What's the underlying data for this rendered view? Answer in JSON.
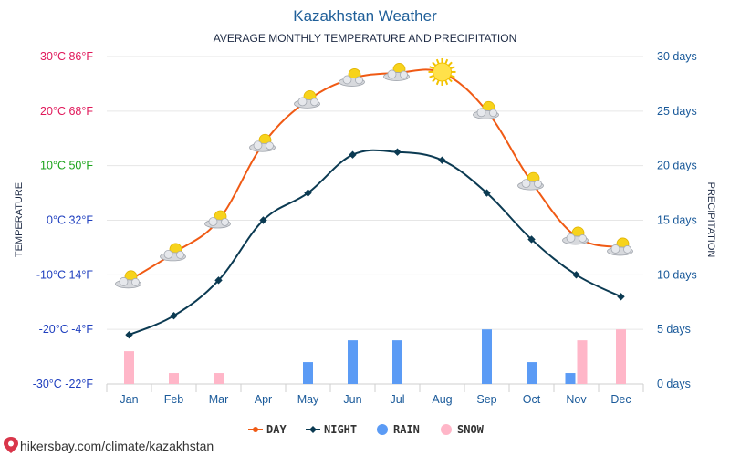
{
  "chart_data": {
    "type": "line",
    "title": "Kazakhstan Weather",
    "subtitle": "AVERAGE MONTHLY TEMPERATURE AND PRECIPITATION",
    "ylabel_left": "TEMPERATURE",
    "ylabel_right": "PRECIPITATION",
    "categories": [
      "Jan",
      "Feb",
      "Mar",
      "Apr",
      "May",
      "Jun",
      "Jul",
      "Aug",
      "Sep",
      "Oct",
      "Nov",
      "Dec"
    ],
    "temperature_axis": {
      "range_c": [
        -30,
        30
      ],
      "ticks": [
        {
          "c": 30,
          "label": "30°C 86°F",
          "color": "#e0185a"
        },
        {
          "c": 20,
          "label": "20°C 68°F",
          "color": "#e0185a"
        },
        {
          "c": 10,
          "label": "10°C 50°F",
          "color": "#1aa31a"
        },
        {
          "c": 0,
          "label": "0°C 32°F",
          "color": "#1f3fbf"
        },
        {
          "c": -10,
          "label": "-10°C 14°F",
          "color": "#1f3fbf"
        },
        {
          "c": -20,
          "label": "-20°C -4°F",
          "color": "#1f3fbf"
        },
        {
          "c": -30,
          "label": "-30°C -22°F",
          "color": "#1f3fbf"
        }
      ]
    },
    "precipitation_axis": {
      "range_days": [
        0,
        30
      ],
      "ticks": [
        {
          "v": 30,
          "label": "30 days"
        },
        {
          "v": 25,
          "label": "25 days"
        },
        {
          "v": 20,
          "label": "20 days"
        },
        {
          "v": 15,
          "label": "15 days"
        },
        {
          "v": 10,
          "label": "10 days"
        },
        {
          "v": 5,
          "label": "5 days"
        },
        {
          "v": 0,
          "label": "0 days"
        }
      ]
    },
    "series": [
      {
        "name": "DAY",
        "type": "line",
        "color": "#f05a14",
        "values": [
          -11,
          -6,
          0,
          14,
          22,
          26,
          27,
          27,
          20,
          7,
          -3,
          -5
        ],
        "markers": [
          "partly-cloudy",
          "partly-cloudy",
          "partly-cloudy",
          "partly-cloudy",
          "partly-cloudy",
          "partly-cloudy",
          "partly-cloudy",
          "sunny",
          "partly-cloudy",
          "partly-cloudy",
          "partly-cloudy",
          "partly-cloudy"
        ]
      },
      {
        "name": "NIGHT",
        "type": "line",
        "color": "#0b3a52",
        "values": [
          -21,
          -17.5,
          -11,
          0,
          5,
          12,
          12.5,
          11,
          5,
          -3.5,
          -10,
          -14
        ]
      },
      {
        "name": "RAIN",
        "type": "bar",
        "color": "#5b9bf5",
        "values": [
          0,
          0,
          0,
          0,
          2,
          4,
          4,
          0,
          5,
          2,
          1,
          0
        ]
      },
      {
        "name": "SNOW",
        "type": "bar",
        "color": "#ffb6c8",
        "values": [
          3,
          1,
          1,
          0,
          0,
          0,
          0,
          0,
          0,
          0,
          4,
          5
        ]
      }
    ]
  },
  "legend": [
    {
      "name": "DAY",
      "kind": "line",
      "color": "#f05a14"
    },
    {
      "name": "NIGHT",
      "kind": "line",
      "color": "#0b3a52"
    },
    {
      "name": "RAIN",
      "kind": "dot",
      "color": "#5b9bf5"
    },
    {
      "name": "SNOW",
      "kind": "dot",
      "color": "#ffb6c8"
    }
  ],
  "source": "hikersbay.com/climate/kazakhstan"
}
